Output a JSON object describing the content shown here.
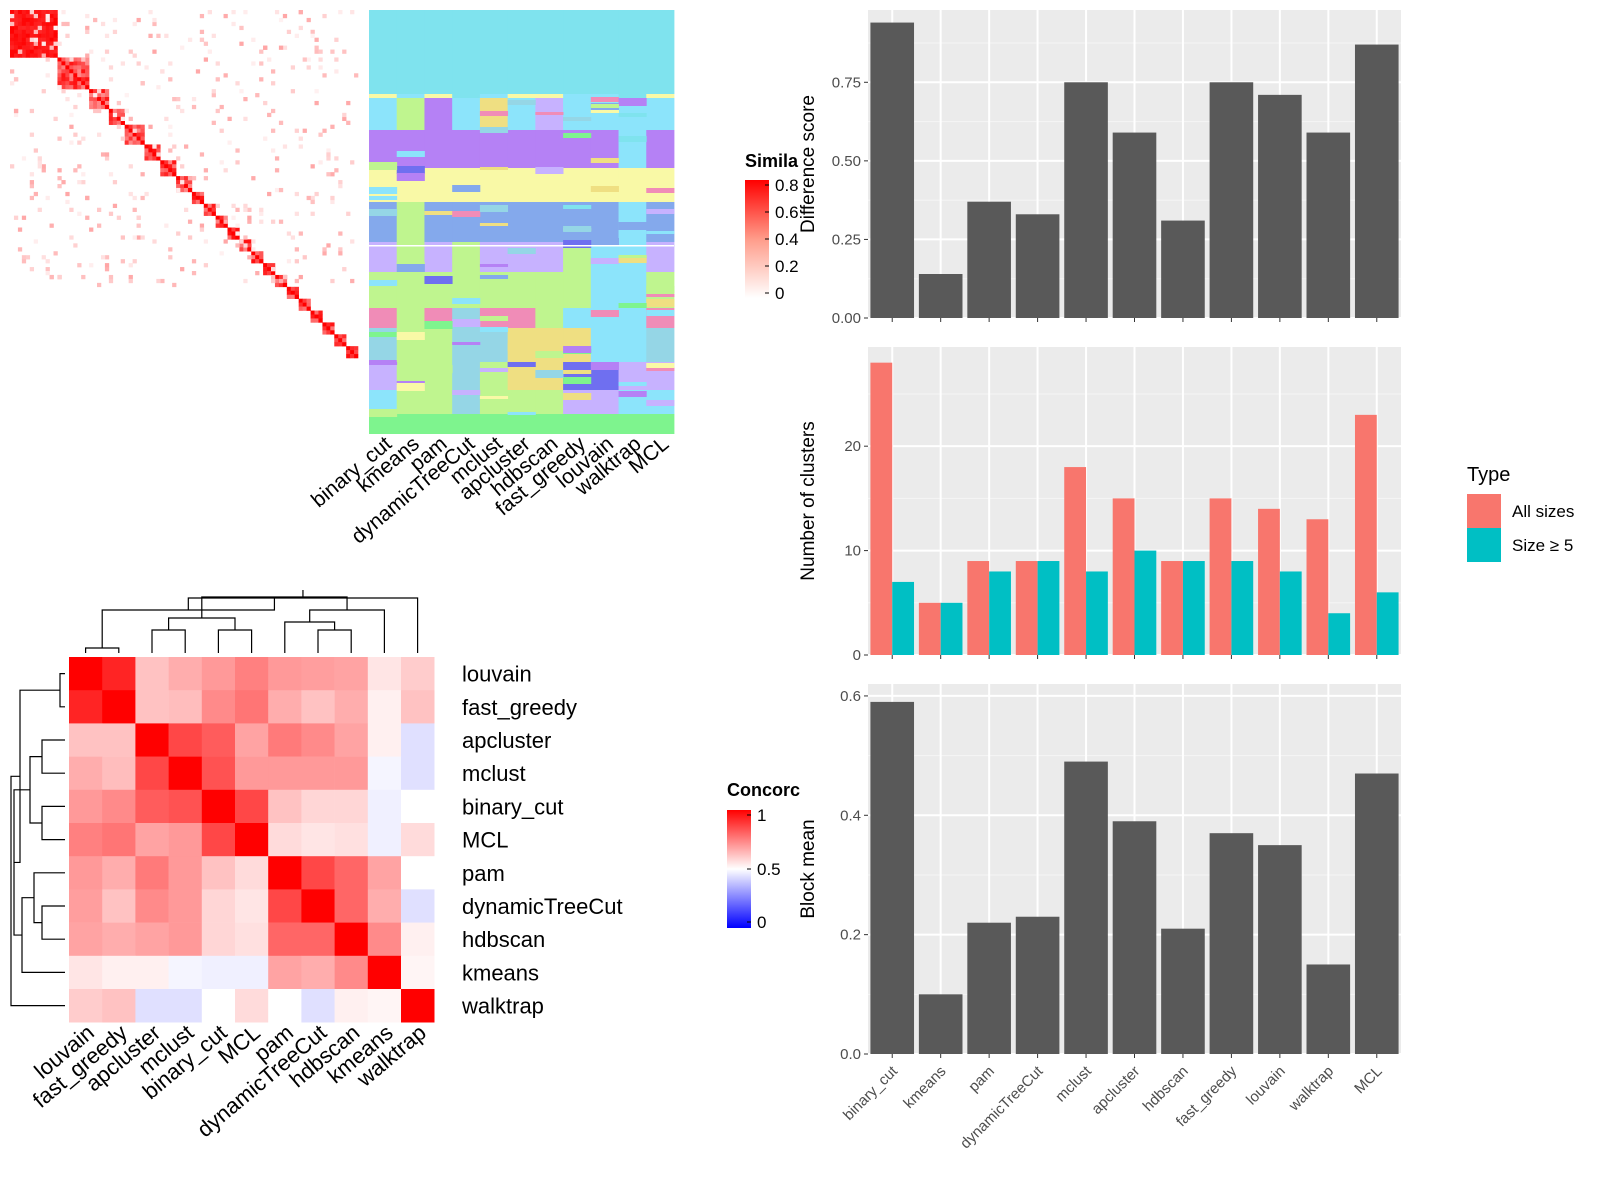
{
  "methods": [
    "binary_cut",
    "kmeans",
    "pam",
    "dynamicTreeCut",
    "mclust",
    "apcluster",
    "hdbscan",
    "fast_greedy",
    "louvain",
    "walktrap",
    "MCL"
  ],
  "similarity_legend": {
    "title": "Simila",
    "ticks": [
      "0.8",
      "0.6",
      "0.4",
      "0.2",
      "0"
    ]
  },
  "concordance_legend": {
    "title": "Concorc",
    "ticks": [
      "1",
      "0.5",
      "0"
    ]
  },
  "concordance_order": [
    "louvain",
    "fast_greedy",
    "apcluster",
    "mclust",
    "binary_cut",
    "MCL",
    "pam",
    "dynamicTreeCut",
    "hdbscan",
    "kmeans",
    "walktrap"
  ],
  "concordance_matrix": [
    [
      1.0,
      0.93,
      0.62,
      0.66,
      0.7,
      0.75,
      0.7,
      0.69,
      0.68,
      0.55,
      0.6
    ],
    [
      0.93,
      1.0,
      0.62,
      0.63,
      0.73,
      0.77,
      0.66,
      0.62,
      0.66,
      0.53,
      0.62
    ],
    [
      0.62,
      0.62,
      1.0,
      0.86,
      0.82,
      0.68,
      0.76,
      0.73,
      0.68,
      0.53,
      0.44
    ],
    [
      0.66,
      0.63,
      0.86,
      1.0,
      0.84,
      0.7,
      0.7,
      0.7,
      0.7,
      0.48,
      0.44
    ],
    [
      0.7,
      0.73,
      0.82,
      0.84,
      1.0,
      0.86,
      0.62,
      0.58,
      0.58,
      0.47,
      0.5
    ],
    [
      0.75,
      0.77,
      0.68,
      0.7,
      0.86,
      1.0,
      0.57,
      0.55,
      0.56,
      0.47,
      0.57
    ],
    [
      0.7,
      0.66,
      0.76,
      0.7,
      0.62,
      0.57,
      1.0,
      0.86,
      0.8,
      0.68,
      0.5
    ],
    [
      0.69,
      0.62,
      0.73,
      0.7,
      0.58,
      0.55,
      0.86,
      1.0,
      0.8,
      0.66,
      0.44
    ],
    [
      0.68,
      0.66,
      0.68,
      0.7,
      0.58,
      0.56,
      0.8,
      0.8,
      1.0,
      0.73,
      0.53
    ],
    [
      0.55,
      0.53,
      0.53,
      0.48,
      0.47,
      0.47,
      0.68,
      0.66,
      0.73,
      1.0,
      0.52
    ],
    [
      0.6,
      0.62,
      0.44,
      0.44,
      0.5,
      0.57,
      0.5,
      0.44,
      0.53,
      0.52,
      1.0
    ]
  ],
  "membership_colors": [
    "#7fe3ee",
    "#8ce4fb",
    "#f9f9a6",
    "#b581f5",
    "#84a9ec",
    "#bff58f",
    "#f08cb7",
    "#efdf82",
    "#95d6e6",
    "#c7b2ff",
    "#7ef48e",
    "#6f6ff0"
  ],
  "colors": {
    "bar_dark": "#595959",
    "all_sizes": "#f8766d",
    "size_ge5": "#00bfc4",
    "panel_bg": "#ebebeb"
  },
  "chart_data": [
    {
      "type": "bar",
      "categories": [
        "binary_cut",
        "kmeans",
        "pam",
        "dynamicTreeCut",
        "mclust",
        "apcluster",
        "hdbscan",
        "fast_greedy",
        "louvain",
        "walktrap",
        "MCL"
      ],
      "values": [
        0.94,
        0.14,
        0.37,
        0.33,
        0.75,
        0.59,
        0.31,
        0.75,
        0.71,
        0.59,
        0.87
      ],
      "ylabel": "Difference score",
      "ylim": [
        0,
        0.98
      ],
      "yticks": [
        "0.00",
        "0.25",
        "0.50",
        "0.75"
      ],
      "grid": true
    },
    {
      "type": "bar",
      "categories": [
        "binary_cut",
        "kmeans",
        "pam",
        "dynamicTreeCut",
        "mclust",
        "apcluster",
        "hdbscan",
        "fast_greedy",
        "louvain",
        "walktrap",
        "MCL"
      ],
      "series": [
        {
          "name": "All sizes",
          "values": [
            28,
            5,
            9,
            9,
            18,
            15,
            9,
            15,
            14,
            13,
            23
          ]
        },
        {
          "name": "Size ≥ 5",
          "values": [
            7,
            5,
            8,
            9,
            8,
            10,
            9,
            9,
            8,
            4,
            6
          ]
        }
      ],
      "ylabel": "Number of clusters",
      "ylim": [
        0,
        29.5
      ],
      "yticks": [
        "0",
        "10",
        "20"
      ],
      "legend": {
        "title": "Type",
        "position": "right"
      },
      "grid": true
    },
    {
      "type": "bar",
      "categories": [
        "binary_cut",
        "kmeans",
        "pam",
        "dynamicTreeCut",
        "mclust",
        "apcluster",
        "hdbscan",
        "fast_greedy",
        "louvain",
        "walktrap",
        "MCL"
      ],
      "values": [
        0.59,
        0.1,
        0.22,
        0.23,
        0.49,
        0.39,
        0.21,
        0.37,
        0.35,
        0.15,
        0.47
      ],
      "ylabel": "Block mean",
      "ylim": [
        0,
        0.62
      ],
      "yticks": [
        "0.0",
        "0.2",
        "0.4",
        "0.6"
      ],
      "grid": true
    }
  ]
}
